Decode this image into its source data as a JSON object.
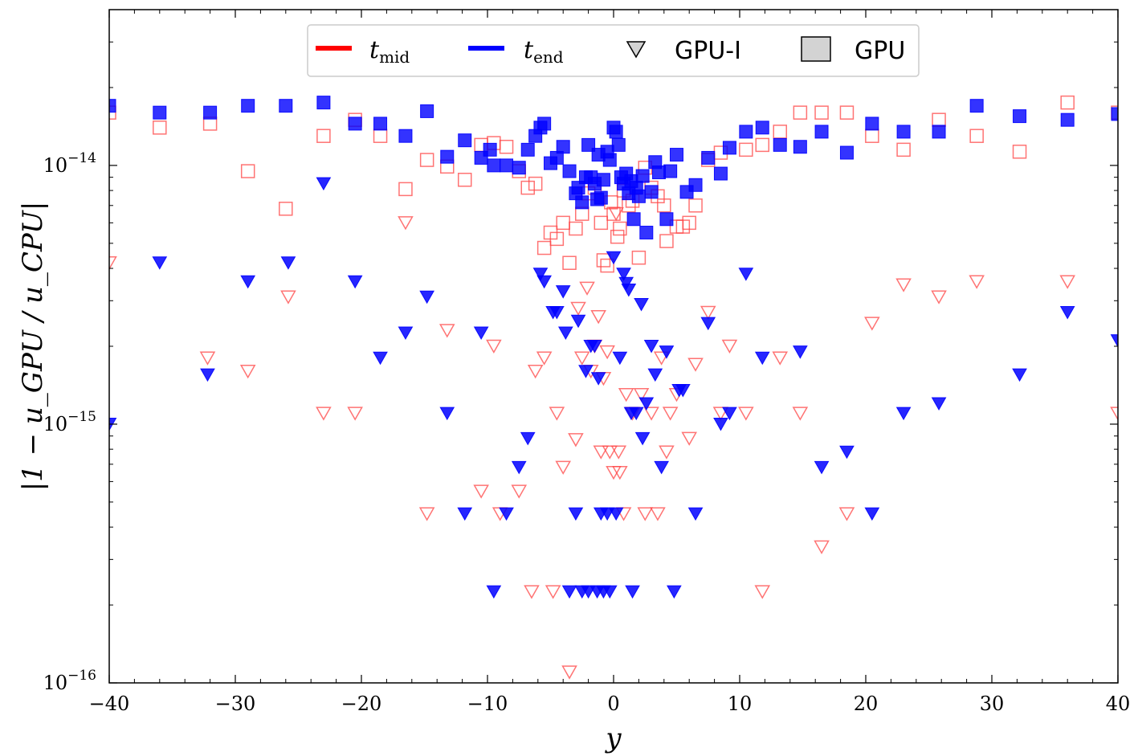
{
  "chart_data": {
    "type": "scatter",
    "xlabel": "y",
    "ylabel": "|1 − u_GPU / u_CPU|",
    "xlim": [
      -40,
      40
    ],
    "ylim": [
      1e-16,
      4e-14
    ],
    "yscale": "log",
    "grid": false,
    "legend_placement": "top-center",
    "xticks": [
      -40,
      -30,
      -20,
      -10,
      0,
      10,
      20,
      30,
      40
    ],
    "xtick_labels": [
      "−40",
      "−30",
      "−20",
      "−10",
      "0",
      "10",
      "20",
      "30",
      "40"
    ],
    "yticks": [
      1e-16,
      1e-15,
      1e-14
    ],
    "ytick_labels": [
      {
        "base": "10",
        "exp": "−16"
      },
      {
        "base": "10",
        "exp": "−15"
      },
      {
        "base": "10",
        "exp": "−14"
      }
    ],
    "legend": [
      {
        "label_main": "t",
        "label_sub": "mid",
        "kind": "line",
        "color": "#ff0000"
      },
      {
        "label_main": "t",
        "label_sub": "end",
        "kind": "line",
        "color": "#0000ff"
      },
      {
        "label": "GPU-I",
        "kind": "triangle"
      },
      {
        "label": "GPU",
        "kind": "square"
      }
    ],
    "series": [
      {
        "name": "t_mid GPU",
        "color": "#ff4444",
        "marker": "square",
        "filled": false,
        "points": [
          [
            -40,
            1.6e-14
          ],
          [
            -36,
            1.4e-14
          ],
          [
            -32,
            1.45e-14
          ],
          [
            -29,
            9.5e-15
          ],
          [
            -26,
            6.8e-15
          ],
          [
            -23,
            1.3e-14
          ],
          [
            -20.5,
            1.5e-14
          ],
          [
            -18.5,
            1.3e-14
          ],
          [
            -16.5,
            8.1e-15
          ],
          [
            -14.8,
            1.05e-14
          ],
          [
            -13.2,
            9.9e-15
          ],
          [
            -11.8,
            8.8e-15
          ],
          [
            -10.5,
            1.2e-14
          ],
          [
            -9.5,
            1.22e-14
          ],
          [
            -8.5,
            1.18e-14
          ],
          [
            -7.5,
            9.5e-15
          ],
          [
            -6.8,
            8.2e-15
          ],
          [
            -6.2,
            8.5e-15
          ],
          [
            -5.5,
            4.8e-15
          ],
          [
            -5,
            5.5e-15
          ],
          [
            -4.5,
            5.2e-15
          ],
          [
            -4,
            6e-15
          ],
          [
            -3.5,
            4.2e-15
          ],
          [
            -3,
            5.7e-15
          ],
          [
            -2.5,
            6.5e-15
          ],
          [
            -2,
            7.8e-15
          ],
          [
            -1.5,
            8.2e-15
          ],
          [
            -1,
            6e-15
          ],
          [
            -0.8,
            4.3e-15
          ],
          [
            -0.5,
            4.1e-15
          ],
          [
            -0.2,
            7.2e-15
          ],
          [
            0,
            6.5e-15
          ],
          [
            0.3,
            5.3e-15
          ],
          [
            0.5,
            5.7e-15
          ],
          [
            0.8,
            8e-15
          ],
          [
            1.2,
            7e-15
          ],
          [
            1.5,
            7.3e-15
          ],
          [
            2,
            4.4e-15
          ],
          [
            2.5,
            9.8e-15
          ],
          [
            3,
            8.2e-15
          ],
          [
            3.5,
            7.6e-15
          ],
          [
            4,
            7e-15
          ],
          [
            4.2,
            5.1e-15
          ],
          [
            5,
            5.8e-15
          ],
          [
            5.5,
            5.8e-15
          ],
          [
            6,
            6e-15
          ],
          [
            6.5,
            7e-15
          ],
          [
            7.5,
            1.05e-14
          ],
          [
            8.5,
            1.12e-14
          ],
          [
            10.5,
            1.15e-14
          ],
          [
            11.8,
            1.2e-14
          ],
          [
            13.2,
            1.35e-14
          ],
          [
            14.8,
            1.6e-14
          ],
          [
            16.5,
            1.6e-14
          ],
          [
            18.5,
            1.6e-14
          ],
          [
            20.5,
            1.3e-14
          ],
          [
            23,
            1.15e-14
          ],
          [
            25.8,
            1.5e-14
          ],
          [
            28.8,
            1.3e-14
          ],
          [
            32.2,
            1.13e-14
          ],
          [
            36,
            1.75e-14
          ],
          [
            40,
            1.6e-14
          ]
        ]
      },
      {
        "name": "t_end GPU",
        "color": "#0000ff",
        "marker": "square",
        "filled": true,
        "points": [
          [
            -40,
            1.7e-14
          ],
          [
            -36,
            1.6e-14
          ],
          [
            -32,
            1.6e-14
          ],
          [
            -29,
            1.7e-14
          ],
          [
            -26,
            1.7e-14
          ],
          [
            -23,
            1.75e-14
          ],
          [
            -20.5,
            1.45e-14
          ],
          [
            -18.5,
            1.45e-14
          ],
          [
            -16.5,
            1.3e-14
          ],
          [
            -14.8,
            1.62e-14
          ],
          [
            -13.2,
            1.08e-14
          ],
          [
            -11.8,
            1.25e-14
          ],
          [
            -10.5,
            1.07e-14
          ],
          [
            -9.8,
            1.15e-14
          ],
          [
            -9.5,
            1e-14
          ],
          [
            -8.5,
            1e-14
          ],
          [
            -7.5,
            9.8e-15
          ],
          [
            -6.8,
            1.15e-14
          ],
          [
            -6.2,
            1.3e-14
          ],
          [
            -5.8,
            1.4e-14
          ],
          [
            -5.5,
            1.45e-14
          ],
          [
            -5,
            1.02e-14
          ],
          [
            -4.5,
            1.07e-14
          ],
          [
            -4,
            1.18e-14
          ],
          [
            -3.5,
            9.5e-15
          ],
          [
            -3,
            7.8e-15
          ],
          [
            -2.8,
            8.2e-15
          ],
          [
            -2.5,
            7.2e-15
          ],
          [
            -2.2,
            9e-15
          ],
          [
            -2,
            1.2e-14
          ],
          [
            -1.8,
            9e-15
          ],
          [
            -1.5,
            8.5e-15
          ],
          [
            -1.3,
            7.4e-15
          ],
          [
            -1.2,
            1.1e-14
          ],
          [
            -1,
            7.5e-15
          ],
          [
            -0.8,
            8.8e-15
          ],
          [
            -0.5,
            1.13e-14
          ],
          [
            -0.3,
            1.05e-14
          ],
          [
            0,
            1.4e-14
          ],
          [
            0.2,
            1.35e-14
          ],
          [
            0.4,
            1.2e-14
          ],
          [
            0.6,
            9e-15
          ],
          [
            0.8,
            8.5e-15
          ],
          [
            1,
            9.3e-15
          ],
          [
            1.2,
            7.8e-15
          ],
          [
            1.4,
            8.7e-15
          ],
          [
            1.6,
            6.2e-15
          ],
          [
            1.8,
            8.2e-15
          ],
          [
            2,
            7.6e-15
          ],
          [
            2.3,
            9.1e-15
          ],
          [
            2.6,
            5.5e-15
          ],
          [
            3,
            7.9e-15
          ],
          [
            3.3,
            1.03e-14
          ],
          [
            3.6,
            9.4e-15
          ],
          [
            4.2,
            6.2e-15
          ],
          [
            4.5,
            9.5e-15
          ],
          [
            5,
            1.1e-14
          ],
          [
            5.8,
            7.9e-15
          ],
          [
            6.5,
            8.4e-15
          ],
          [
            7.5,
            1.07e-14
          ],
          [
            8.5,
            9.3e-15
          ],
          [
            9.2,
            1.17e-14
          ],
          [
            10.5,
            1.35e-14
          ],
          [
            11.8,
            1.4e-14
          ],
          [
            13.2,
            1.2e-14
          ],
          [
            14.8,
            1.18e-14
          ],
          [
            16.5,
            1.35e-14
          ],
          [
            18.5,
            1.12e-14
          ],
          [
            20.5,
            1.45e-14
          ],
          [
            23,
            1.35e-14
          ],
          [
            25.8,
            1.35e-14
          ],
          [
            28.8,
            1.7e-14
          ],
          [
            32.2,
            1.55e-14
          ],
          [
            36,
            1.5e-14
          ],
          [
            40,
            1.58e-14
          ]
        ]
      },
      {
        "name": "t_mid GPU-I",
        "color": "#ff4444",
        "marker": "triangle",
        "filled": false,
        "points": [
          [
            -40,
            4.2e-15
          ],
          [
            -32.2,
            1.8e-15
          ],
          [
            -29,
            1.6e-15
          ],
          [
            -25.8,
            3.1e-15
          ],
          [
            -23,
            1.1e-15
          ],
          [
            -20.5,
            1.1e-15
          ],
          [
            -16.5,
            6e-15
          ],
          [
            -14.8,
            4.5e-16
          ],
          [
            -13.2,
            2.3e-15
          ],
          [
            -10.5,
            5.5e-16
          ],
          [
            -9.5,
            2e-15
          ],
          [
            -9,
            4.5e-16
          ],
          [
            -7.5,
            5.5e-16
          ],
          [
            -6.5,
            2.25e-16
          ],
          [
            -6.2,
            1.6e-15
          ],
          [
            -5.5,
            1.8e-15
          ],
          [
            -4.8,
            2.25e-16
          ],
          [
            -4.5,
            1.1e-15
          ],
          [
            -4,
            6.8e-16
          ],
          [
            -3.5,
            1.1e-16
          ],
          [
            -3,
            8.7e-16
          ],
          [
            -2.8,
            2.8e-15
          ],
          [
            -2.5,
            1.8e-15
          ],
          [
            -2.1,
            3.35e-15
          ],
          [
            -1.8,
            1.6e-15
          ],
          [
            -1.5,
            2e-15
          ],
          [
            -1.2,
            2.6e-15
          ],
          [
            -1,
            7.8e-16
          ],
          [
            -0.8,
            1.5e-15
          ],
          [
            -0.5,
            1.9e-15
          ],
          [
            -0.3,
            7.8e-16
          ],
          [
            0,
            6.5e-16
          ],
          [
            0.2,
            6.5e-15
          ],
          [
            0.4,
            7.8e-16
          ],
          [
            0.5,
            6.5e-16
          ],
          [
            0.8,
            4.5e-16
          ],
          [
            1,
            1.3e-15
          ],
          [
            1.5,
            1.1e-15
          ],
          [
            2.2,
            1.3e-15
          ],
          [
            2.5,
            4.5e-16
          ],
          [
            3,
            1.1e-15
          ],
          [
            3.5,
            4.5e-16
          ],
          [
            3.8,
            1.8e-15
          ],
          [
            4.2,
            7.8e-16
          ],
          [
            4.5,
            1.1e-15
          ],
          [
            5,
            1.3e-15
          ],
          [
            6,
            8.8e-16
          ],
          [
            6.5,
            1.7e-15
          ],
          [
            7.5,
            2.7e-15
          ],
          [
            8.5,
            1.1e-15
          ],
          [
            9.2,
            2e-15
          ],
          [
            10.5,
            1.1e-15
          ],
          [
            11.8,
            2.25e-16
          ],
          [
            13.2,
            1.8e-15
          ],
          [
            14.8,
            1.1e-15
          ],
          [
            16.5,
            3.35e-16
          ],
          [
            18.5,
            4.5e-16
          ],
          [
            20.5,
            2.45e-15
          ],
          [
            23,
            3.45e-15
          ],
          [
            25.8,
            3.1e-15
          ],
          [
            28.8,
            3.55e-15
          ],
          [
            36,
            3.55e-15
          ],
          [
            40,
            1.1e-15
          ]
        ]
      },
      {
        "name": "t_end GPU-I",
        "color": "#0000ff",
        "marker": "triangle",
        "filled": true,
        "points": [
          [
            -40,
            1e-15
          ],
          [
            -36,
            4.2e-15
          ],
          [
            -32.2,
            1.55e-15
          ],
          [
            -29,
            3.55e-15
          ],
          [
            -25.8,
            4.2e-15
          ],
          [
            -23,
            8.5e-15
          ],
          [
            -20.5,
            3.55e-15
          ],
          [
            -18.5,
            1.8e-15
          ],
          [
            -16.5,
            2.25e-15
          ],
          [
            -14.8,
            3.1e-15
          ],
          [
            -13.2,
            1.1e-15
          ],
          [
            -11.8,
            4.5e-16
          ],
          [
            -10.5,
            2.25e-15
          ],
          [
            -9.5,
            2.25e-16
          ],
          [
            -8.5,
            4.5e-16
          ],
          [
            -7.5,
            6.8e-16
          ],
          [
            -6.8,
            8.8e-16
          ],
          [
            -5.8,
            3.8e-15
          ],
          [
            -5.5,
            3.55e-15
          ],
          [
            -4.8,
            2.7e-15
          ],
          [
            -4.5,
            2.7e-15
          ],
          [
            -4,
            3.25e-15
          ],
          [
            -3.8,
            2.25e-15
          ],
          [
            -3.5,
            2.25e-16
          ],
          [
            -3,
            4.5e-16
          ],
          [
            -2.8,
            2.5e-15
          ],
          [
            -2.5,
            2.25e-16
          ],
          [
            -2.2,
            1.6e-15
          ],
          [
            -2,
            2.25e-16
          ],
          [
            -1.8,
            2e-15
          ],
          [
            -1.5,
            2e-15
          ],
          [
            -1.3,
            2.25e-16
          ],
          [
            -1.2,
            1.5e-15
          ],
          [
            -1,
            4.5e-16
          ],
          [
            -0.8,
            2.25e-16
          ],
          [
            -0.5,
            4.5e-16
          ],
          [
            -0.3,
            2.25e-16
          ],
          [
            0,
            4.4e-15
          ],
          [
            0.2,
            4.5e-16
          ],
          [
            0.5,
            1.8e-15
          ],
          [
            0.8,
            3.8e-15
          ],
          [
            1,
            3.5e-15
          ],
          [
            1.2,
            3.3e-15
          ],
          [
            1.4,
            1.1e-15
          ],
          [
            1.5,
            2.25e-16
          ],
          [
            1.8,
            1.1e-15
          ],
          [
            2.2,
            2.9e-15
          ],
          [
            2.3,
            8.8e-16
          ],
          [
            2.6,
            1.2e-15
          ],
          [
            3,
            2e-15
          ],
          [
            3.3,
            1.55e-15
          ],
          [
            3.8,
            6.8e-16
          ],
          [
            4.2,
            1.9e-15
          ],
          [
            4.8,
            2.25e-16
          ],
          [
            5.2,
            1.35e-15
          ],
          [
            5.5,
            1.35e-15
          ],
          [
            6.5,
            4.5e-16
          ],
          [
            7.5,
            2.45e-15
          ],
          [
            8.5,
            1e-15
          ],
          [
            9.2,
            1.1e-15
          ],
          [
            10.5,
            3.8e-15
          ],
          [
            11.8,
            1.8e-15
          ],
          [
            14.8,
            1.9e-15
          ],
          [
            16.5,
            6.8e-16
          ],
          [
            18.5,
            7.8e-16
          ],
          [
            20.5,
            4.5e-16
          ],
          [
            23,
            1.1e-15
          ],
          [
            25.8,
            1.2e-15
          ],
          [
            32.2,
            1.55e-15
          ],
          [
            36,
            2.7e-15
          ],
          [
            40,
            2.1e-15
          ]
        ]
      }
    ]
  }
}
